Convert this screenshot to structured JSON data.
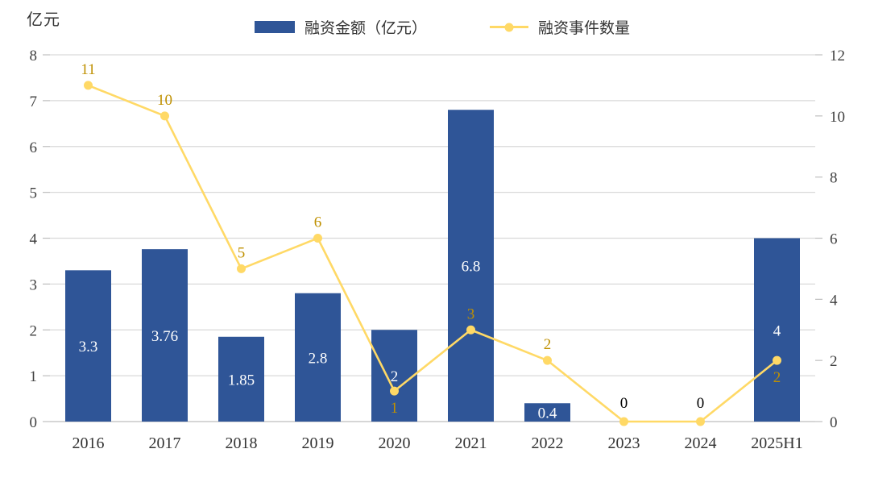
{
  "chart_data": {
    "type": "bar",
    "subtype": "combo-bar-line",
    "title": "",
    "unit_label": "亿元",
    "categories": [
      "2016",
      "2017",
      "2018",
      "2019",
      "2020",
      "2021",
      "2022",
      "2023",
      "2024",
      "2025H1"
    ],
    "series": [
      {
        "name": "融资金额（亿元）",
        "type": "bar",
        "axis": "left",
        "values": [
          3.3,
          3.76,
          1.85,
          2.8,
          2,
          6.8,
          0.4,
          0,
          0,
          4
        ],
        "labels": [
          "3.3",
          "3.76",
          "1.85",
          "2.8",
          "2",
          "6.8",
          "0.4",
          "0",
          "0",
          "4"
        ],
        "color": "#2F5597",
        "label_color_inside": "#FFFFFF",
        "label_color_zero": "#000000"
      },
      {
        "name": "融资事件数量",
        "type": "line",
        "axis": "right",
        "values": [
          11,
          10,
          5,
          6,
          1,
          3,
          2,
          0,
          0,
          2
        ],
        "labels": [
          "11",
          "10",
          "5",
          "6",
          "1",
          "3",
          "2",
          "",
          "",
          "2"
        ],
        "label_positions": [
          "above",
          "above",
          "above",
          "above",
          "below",
          "above",
          "above",
          "none",
          "none",
          "below"
        ],
        "color": "#FFD966",
        "label_color": "#BF9000"
      }
    ],
    "left_axis": {
      "min": 0,
      "max": 8,
      "ticks": [
        0,
        1,
        2,
        3,
        4,
        5,
        6,
        7,
        8
      ]
    },
    "right_axis": {
      "min": 0,
      "max": 12,
      "ticks": [
        0,
        2,
        4,
        6,
        8,
        10,
        12
      ]
    },
    "grid": true,
    "legend_position": "top",
    "colors": {
      "grid": "#D9D9D9",
      "axis_line": "#C9C9C9",
      "tick": "#BFBFBF",
      "axis_text": "#404040",
      "category_text": "#333333"
    }
  }
}
